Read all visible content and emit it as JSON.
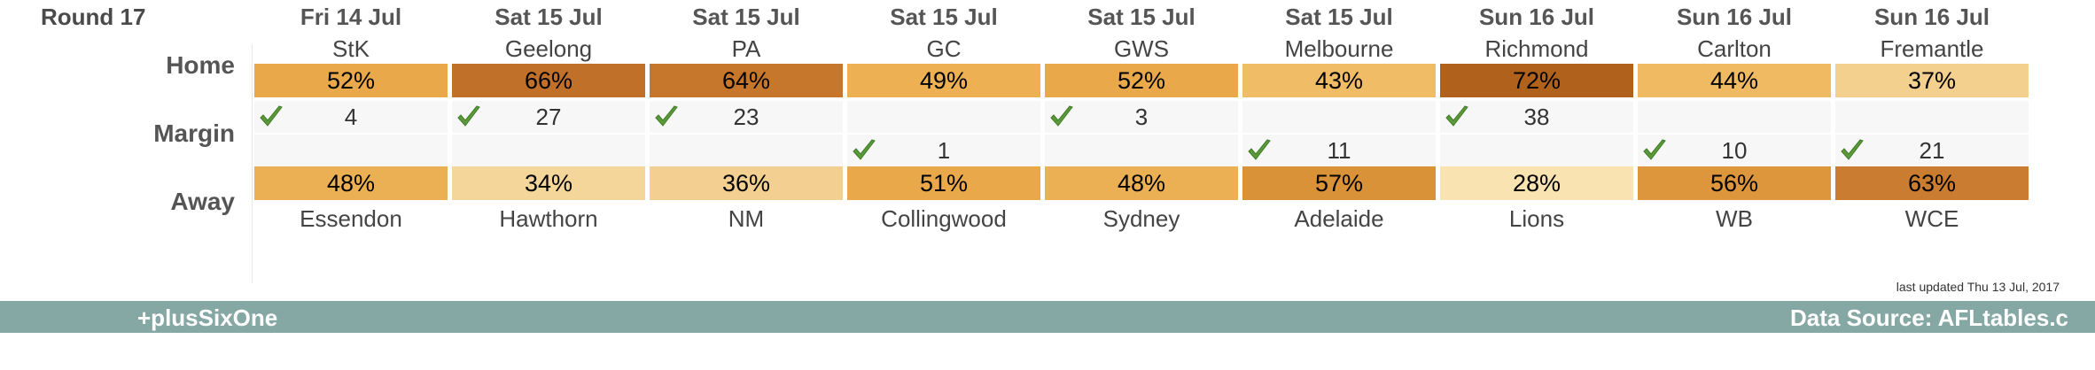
{
  "round": "Round 17",
  "labels": {
    "home": "Home",
    "margin": "Margin",
    "away": "Away"
  },
  "games": [
    {
      "date": "Fri 14 Jul",
      "home": "StK",
      "away": "Essendon",
      "home_pct": "52%",
      "away_pct": "48%",
      "home_color": "#e9a84a",
      "away_color": "#ecb054",
      "margin": "4",
      "winner": "home"
    },
    {
      "date": "Sat 15 Jul",
      "home": "Geelong",
      "away": "Hawthorn",
      "home_pct": "66%",
      "away_pct": "34%",
      "home_color": "#c07028",
      "away_color": "#f5d69a",
      "margin": "27",
      "winner": "home"
    },
    {
      "date": "Sat 15 Jul",
      "home": "PA",
      "away": "NM",
      "home_pct": "64%",
      "away_pct": "36%",
      "home_color": "#c6772c",
      "away_color": "#f3d092",
      "margin": "23",
      "winner": "home"
    },
    {
      "date": "Sat 15 Jul",
      "home": "GC",
      "away": "Collingwood",
      "home_pct": "49%",
      "away_pct": "51%",
      "home_color": "#edb153",
      "away_color": "#e9a84a",
      "margin": "1",
      "winner": "away"
    },
    {
      "date": "Sat 15 Jul",
      "home": "GWS",
      "away": "Sydney",
      "home_pct": "52%",
      "away_pct": "48%",
      "home_color": "#e9a84a",
      "away_color": "#ecb054",
      "margin": "3",
      "winner": "home"
    },
    {
      "date": "Sat 15 Jul",
      "home": "Melbourne",
      "away": "Adelaide",
      "home_pct": "43%",
      "away_pct": "57%",
      "home_color": "#f0bd66",
      "away_color": "#da9238",
      "margin": "11",
      "winner": "away"
    },
    {
      "date": "Sun 16 Jul",
      "home": "Richmond",
      "away": "Lions",
      "home_pct": "72%",
      "away_pct": "28%",
      "home_color": "#b0611c",
      "away_color": "#f9e3b0",
      "margin": "38",
      "winner": "home"
    },
    {
      "date": "Sun 16 Jul",
      "home": "Carlton",
      "away": "WB",
      "home_pct": "44%",
      "away_pct": "56%",
      "home_color": "#efba62",
      "away_color": "#dd963b",
      "margin": "10",
      "winner": "away"
    },
    {
      "date": "Sun 16 Jul",
      "home": "Fremantle",
      "away": "WCE",
      "home_pct": "37%",
      "away_pct": "63%",
      "home_color": "#f4d08e",
      "away_color": "#ca7c30",
      "margin": "21",
      "winner": "away"
    }
  ],
  "tick_color": "#5a9a3a",
  "last_updated": "last updated Thu 13 Jul, 2017",
  "footer": {
    "left": "+plusSixOne",
    "right": "Data Source: AFLtables.c"
  }
}
